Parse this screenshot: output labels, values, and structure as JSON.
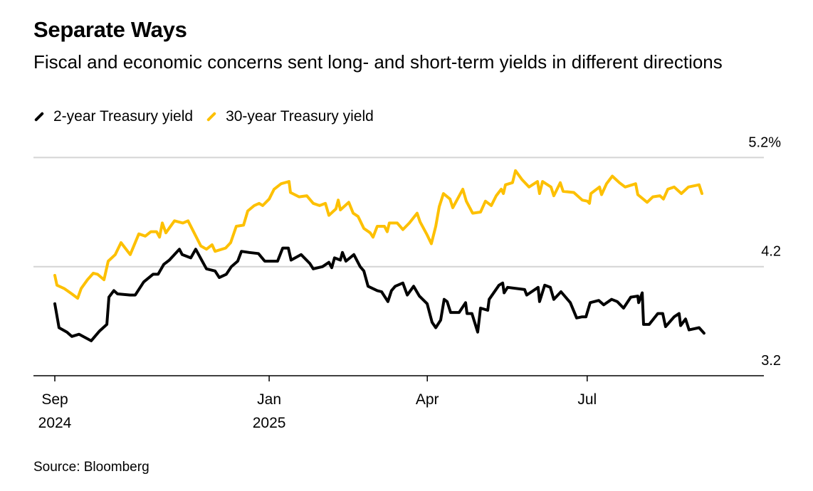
{
  "header": {
    "title": "Separate Ways",
    "subtitle": "Fiscal and economic concerns sent long- and short-term yields in different directions"
  },
  "footer": {
    "source": "Source: Bloomberg"
  },
  "chart_data": {
    "type": "line",
    "title": "Separate Ways",
    "xlabel": "",
    "ylabel": "",
    "x_unit": "days since 2024-09-01",
    "ylim": [
      3.2,
      5.2
    ],
    "y_ticks": [
      {
        "value": 5.2,
        "label": "5.2%"
      },
      {
        "value": 4.2,
        "label": "4.2"
      },
      {
        "value": 3.2,
        "label": "3.2"
      }
    ],
    "x_ticks": [
      {
        "day": 0,
        "line1": "Sep",
        "line2": "2024"
      },
      {
        "day": 122,
        "line1": "Jan",
        "line2": "2025"
      },
      {
        "day": 212,
        "line1": "Apr",
        "line2": ""
      },
      {
        "day": 303,
        "line1": "Jul",
        "line2": ""
      }
    ],
    "grid": true,
    "legend_position": "top-left",
    "series": [
      {
        "name": "2-year Treasury yield",
        "color": "#000000",
        "x": [
          0,
          2.4,
          6.9,
          9.7,
          13.8,
          20.7,
          25.5,
          29.6,
          30.8,
          33.6,
          35.7,
          42.9,
          45.8,
          50.6,
          55.9,
          58.8,
          62.0,
          65.2,
          70.9,
          72.5,
          77.4,
          80.2,
          86.3,
          91.2,
          93.6,
          97.6,
          100.5,
          104.1,
          106.2,
          110.6,
          115.9,
          119.5,
          126.8,
          129.7,
          132.9,
          134.5,
          140.2,
          145.1,
          147.1,
          152.4,
          156.0,
          157.6,
          159.2,
          162.5,
          163.7,
          165.7,
          170.2,
          173.8,
          175.9,
          178.3,
          183.5,
          186.0,
          189.6,
          191.6,
          193.7,
          198.1,
          200.6,
          204.2,
          207.5,
          211.9,
          214.7,
          216.8,
          219.6,
          221.6,
          223.3,
          225.3,
          230.1,
          233.8,
          234.6,
          237.4,
          240.7,
          242.3,
          246.4,
          247.2,
          252.8,
          254.9,
          255.7,
          257.7,
          267.4,
          268.6,
          275.1,
          275.9,
          278.8,
          282.0,
          284.0,
          288.1,
          293.4,
          297.0,
          300.2,
          302.3,
          304.7,
          309.6,
          312.4,
          316.9,
          320.1,
          323.7,
          327.8,
          331.8,
          332.3,
          334.3,
          335.1,
          338.3,
          343.2,
          346.0,
          347.6,
          352.5,
          355.3,
          356.2,
          359.0,
          361.0,
          366.7,
          369.5
        ],
        "y": [
          3.86,
          3.64,
          3.6,
          3.56,
          3.58,
          3.52,
          3.61,
          3.67,
          3.92,
          3.98,
          3.95,
          3.94,
          3.94,
          4.06,
          4.13,
          4.13,
          4.22,
          4.26,
          4.36,
          4.31,
          4.28,
          4.36,
          4.18,
          4.16,
          4.1,
          4.13,
          4.2,
          4.25,
          4.34,
          4.33,
          4.32,
          4.25,
          4.25,
          4.37,
          4.37,
          4.26,
          4.31,
          4.23,
          4.18,
          4.2,
          4.24,
          4.19,
          4.28,
          4.26,
          4.33,
          4.25,
          4.31,
          4.2,
          4.16,
          4.02,
          3.98,
          3.97,
          3.88,
          3.98,
          4.02,
          4.05,
          3.94,
          4.02,
          3.93,
          3.86,
          3.69,
          3.64,
          3.71,
          3.9,
          3.88,
          3.78,
          3.78,
          3.87,
          3.77,
          3.77,
          3.6,
          3.82,
          3.8,
          3.9,
          4.03,
          4.05,
          3.96,
          4.01,
          3.99,
          3.94,
          4.01,
          3.88,
          4.03,
          4.01,
          3.9,
          3.97,
          3.87,
          3.73,
          3.74,
          3.74,
          3.87,
          3.89,
          3.85,
          3.9,
          3.88,
          3.82,
          3.92,
          3.93,
          3.87,
          3.96,
          3.67,
          3.67,
          3.77,
          3.77,
          3.65,
          3.74,
          3.77,
          3.66,
          3.72,
          3.62,
          3.64,
          3.59
        ]
      },
      {
        "name": "30-year Treasury yield",
        "color": "#FDC000",
        "x": [
          0,
          1.2,
          5.3,
          9.7,
          13.0,
          15.0,
          18.6,
          21.9,
          24.3,
          28.0,
          30.4,
          34.4,
          37.7,
          42.9,
          47.8,
          51.5,
          54.7,
          57.9,
          59.6,
          61.2,
          63.2,
          68.1,
          72.9,
          75.8,
          83.1,
          86.3,
          89.5,
          91.2,
          97.2,
          100.1,
          103.3,
          107.4,
          109.8,
          113.5,
          116.3,
          118.3,
          122.0,
          124.8,
          128.8,
          133.3,
          134.1,
          139.0,
          143.4,
          147.1,
          150.7,
          154.0,
          156.0,
          160.0,
          161.3,
          162.5,
          167.3,
          169.8,
          172.6,
          175.9,
          179.5,
          181.1,
          183.5,
          187.6,
          189.2,
          190.4,
          194.9,
          198.1,
          201.8,
          206.2,
          207.9,
          211.9,
          214.3,
          216.8,
          218.8,
          221.2,
          224.9,
          226.5,
          232.2,
          234.2,
          237.8,
          242.3,
          245.1,
          248.4,
          251.2,
          254.1,
          255.3,
          256.5,
          260.5,
          262.2,
          265.8,
          269.9,
          274.7,
          275.9,
          277.6,
          282.4,
          284.0,
          287.7,
          289.3,
          295.4,
          300.2,
          303.1,
          304.3,
          305.1,
          310.0,
          311.2,
          314.0,
          317.3,
          321.3,
          324.6,
          330.6,
          331.8,
          337.1,
          340.4,
          344.4,
          346.4,
          348.9,
          352.5,
          356.6,
          360.6,
          366.7,
          368.3
        ],
        "y": [
          4.12,
          4.03,
          4.0,
          3.95,
          3.91,
          4.0,
          4.08,
          4.14,
          4.13,
          4.08,
          4.25,
          4.31,
          4.42,
          4.31,
          4.5,
          4.48,
          4.52,
          4.52,
          4.47,
          4.6,
          4.51,
          4.62,
          4.6,
          4.62,
          4.39,
          4.36,
          4.4,
          4.34,
          4.37,
          4.42,
          4.57,
          4.58,
          4.71,
          4.76,
          4.78,
          4.76,
          4.82,
          4.91,
          4.96,
          4.98,
          4.88,
          4.84,
          4.85,
          4.78,
          4.76,
          4.78,
          4.67,
          4.73,
          4.81,
          4.72,
          4.79,
          4.69,
          4.66,
          4.55,
          4.51,
          4.47,
          4.57,
          4.57,
          4.52,
          4.6,
          4.6,
          4.54,
          4.6,
          4.69,
          4.61,
          4.49,
          4.41,
          4.57,
          4.75,
          4.87,
          4.82,
          4.74,
          4.91,
          4.8,
          4.69,
          4.7,
          4.8,
          4.76,
          4.85,
          4.91,
          4.87,
          4.95,
          4.97,
          5.08,
          5.0,
          4.93,
          4.98,
          4.87,
          4.98,
          4.93,
          4.85,
          4.97,
          4.89,
          4.88,
          4.81,
          4.8,
          4.78,
          4.87,
          4.93,
          4.86,
          4.96,
          5.03,
          4.97,
          4.93,
          4.96,
          4.86,
          4.79,
          4.84,
          4.85,
          4.82,
          4.91,
          4.93,
          4.87,
          4.93,
          4.95,
          4.87
        ]
      }
    ]
  }
}
